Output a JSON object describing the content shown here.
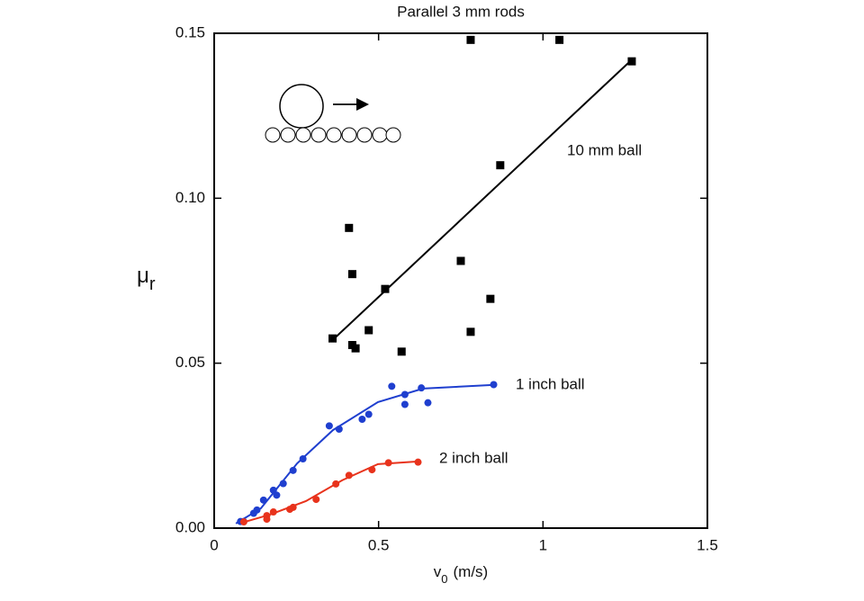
{
  "chart_data": {
    "type": "scatter",
    "title": "Parallel 3 mm rods",
    "x_label": [
      "v",
      "0",
      "(m/s)"
    ],
    "y_label": [
      "μ",
      "r"
    ],
    "xlim": [
      0,
      1.5
    ],
    "xticks": [
      0,
      0.5,
      1,
      1.5
    ],
    "ylim": [
      0,
      0.15
    ],
    "yticks": [
      {
        "value": 0,
        "label": "0.00"
      },
      {
        "value": 0.05,
        "label": "0.05"
      },
      {
        "value": 0.1,
        "label": "0.10"
      },
      {
        "value": 0.15,
        "label": "0.15"
      }
    ],
    "grid": false,
    "series": [
      {
        "name": "10 mm ball",
        "color": "#000000",
        "marker": "square",
        "x": [
          0.78,
          1.05,
          1.27,
          0.87,
          0.41,
          0.42,
          0.75,
          0.52,
          0.84,
          0.36,
          0.47,
          0.78,
          0.42,
          0.43,
          0.57
        ],
        "values": [
          0.148,
          0.148,
          0.1415,
          0.11,
          0.091,
          0.077,
          0.081,
          0.0725,
          0.0695,
          0.0575,
          0.06,
          0.0595,
          0.0555,
          0.0545,
          0.0535
        ],
        "fit": {
          "x": [
            0.36,
            1.27
          ],
          "values": [
            0.057,
            0.142
          ]
        }
      },
      {
        "name": "1 inch ball",
        "color": "#1f3fcf",
        "marker": "circle",
        "x": [
          0.54,
          0.63,
          0.85,
          0.58,
          0.58,
          0.65,
          0.35,
          0.38,
          0.45,
          0.47,
          0.27,
          0.24,
          0.21,
          0.18,
          0.19,
          0.15,
          0.13,
          0.12,
          0.08,
          0.09
        ],
        "values": [
          0.043,
          0.0425,
          0.0435,
          0.0405,
          0.0375,
          0.038,
          0.031,
          0.03,
          0.033,
          0.0345,
          0.021,
          0.0175,
          0.0135,
          0.0115,
          0.01,
          0.0085,
          0.0055,
          0.0045,
          0.002,
          0.002
        ],
        "fit": {
          "x": [
            0.066,
            0.142,
            0.252,
            0.361,
            0.498,
            0.635,
            0.846
          ],
          "values": [
            0.0014,
            0.006,
            0.0196,
            0.0297,
            0.0382,
            0.0423,
            0.0434
          ]
        }
      },
      {
        "name": "2 inch ball",
        "color": "#e8331c",
        "marker": "circle",
        "x": [
          0.62,
          0.53,
          0.48,
          0.41,
          0.37,
          0.31,
          0.24,
          0.23,
          0.18,
          0.16,
          0.16,
          0.09
        ],
        "values": [
          0.02,
          0.0198,
          0.0177,
          0.016,
          0.0134,
          0.0087,
          0.0063,
          0.0057,
          0.0049,
          0.0038,
          0.0027,
          0.0019
        ],
        "fit": {
          "x": [
            0.093,
            0.17,
            0.279,
            0.389,
            0.498,
            0.621
          ],
          "values": [
            0.0019,
            0.0041,
            0.0082,
            0.0145,
            0.0194,
            0.0202
          ]
        }
      }
    ]
  }
}
